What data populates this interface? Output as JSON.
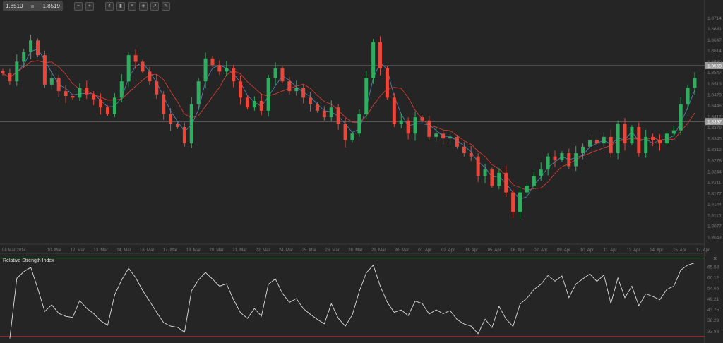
{
  "toolbar": {
    "bid": "1.8510",
    "ask": "1.8519",
    "icons": [
      "zoom-out-icon",
      "zoom-in-icon",
      "period-icon",
      "candles-icon",
      "indicators-icon",
      "objects-icon",
      "chart-type-icon",
      "draw-icon"
    ]
  },
  "colors": {
    "background": "#252525",
    "bull": "#2fae5f",
    "bear": "#e8473a",
    "ma_fast": "#4f7fb0",
    "ma_slow": "#d23c32",
    "rsi_line": "#dddddd",
    "level_high": "#3a8a3a",
    "level_low": "#c02828"
  },
  "chart_data": [
    {
      "type": "candlestick",
      "title": "",
      "y_ticks": [
        "1.8714",
        "1.8681",
        "1.8647",
        "1.8614",
        "1.8580",
        "1.8547",
        "1.8513",
        "1.8479",
        "1.8446",
        "1.8412",
        "1.8379",
        "1.8345",
        "1.8312",
        "1.8278",
        "1.8244",
        "1.8211",
        "1.8177",
        "1.8144",
        "1.8110",
        "1.8077",
        "1.8043"
      ],
      "ylim": [
        1.803,
        1.873
      ],
      "x_ticks": [
        "08 Mar 2014",
        "10. Mar",
        "12. Mar",
        "13. Mar",
        "14. Mar",
        "16. Mar",
        "17. Mar",
        "18. Mar",
        "20. Mar",
        "21. Mar",
        "22. Mar",
        "24. Mar",
        "25. Mar",
        "26. Mar",
        "28. Mar",
        "29. Mar",
        "30. Mar",
        "01. Apr",
        "02. Apr",
        "03. Apr",
        "05. Apr",
        "06. Apr",
        "07. Apr",
        "09. Apr",
        "10. Apr",
        "11. Apr",
        "13. Apr",
        "14. Apr",
        "15. Apr",
        "17. Apr"
      ],
      "horizontal_lines": [
        {
          "value": "1.8568"
        },
        {
          "value": "1.8397"
        }
      ],
      "moving_averages": [
        "fast",
        "slow"
      ],
      "close": [
        1.8544,
        1.852,
        1.858,
        1.861,
        1.8645,
        1.86,
        1.851,
        1.853,
        1.849,
        1.8475,
        1.847,
        1.85,
        1.848,
        1.8465,
        1.844,
        1.842,
        1.847,
        1.852,
        1.86,
        1.858,
        1.855,
        1.852,
        1.848,
        1.842,
        1.839,
        1.838,
        1.833,
        1.845,
        1.852,
        1.859,
        1.857,
        1.855,
        1.856,
        1.852,
        1.847,
        1.844,
        1.846,
        1.843,
        1.853,
        1.856,
        1.852,
        1.849,
        1.85,
        1.847,
        1.845,
        1.843,
        1.841,
        1.844,
        1.839,
        1.834,
        1.836,
        1.842,
        1.853,
        1.864,
        1.856,
        1.847,
        1.839,
        1.84,
        1.836,
        1.841,
        1.84,
        1.835,
        1.836,
        1.8345,
        1.835,
        1.832,
        1.83,
        1.829,
        1.823,
        1.825,
        1.82,
        1.824,
        1.818,
        1.812,
        1.818,
        1.82,
        1.823,
        1.825,
        1.829,
        1.828,
        1.83,
        1.826,
        1.83,
        1.832,
        1.834,
        1.833,
        1.835,
        1.83,
        1.839,
        1.833,
        1.838,
        1.83,
        1.835,
        1.834,
        1.833,
        1.836,
        1.837,
        1.845,
        1.85,
        1.853
      ]
    },
    {
      "type": "line",
      "title": "Relative Strength Index",
      "y_ticks": [
        "65.58",
        "60.12",
        "54.66",
        "49.21",
        "43.75",
        "38.29",
        "32.83"
      ],
      "ylim": [
        27.4,
        71.3
      ],
      "levels": [
        70,
        30
      ],
      "close_icon": "close-icon"
    }
  ]
}
